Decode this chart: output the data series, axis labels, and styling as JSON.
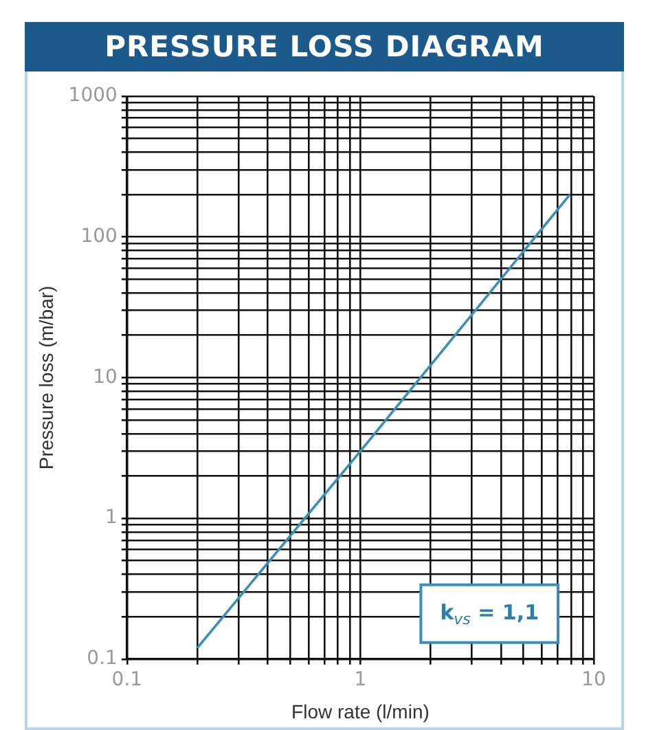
{
  "chart_data": {
    "type": "line",
    "title": "PRESSURE LOSS DIAGRAM",
    "xlabel": "Flow rate (l/min)",
    "ylabel": "Pressure loss (m/bar)",
    "annotations": [
      "k$_{vs}$ = 1,1"
    ],
    "log": "xy",
    "grid": true,
    "legend": false,
    "marker": "none",
    "line_style": "solid",
    "xlim": [
      0.1,
      10
    ],
    "ylim": [
      0.1,
      1000
    ],
    "xticks": [
      0.1,
      {
        "value": 0.2,
        "label": null
      },
      {
        "value": 0.3,
        "label": null
      },
      {
        "value": 0.4,
        "label": null
      },
      {
        "value": 0.5,
        "label": null
      },
      {
        "value": 0.6,
        "label": null
      },
      {
        "value": 0.7,
        "label": null
      },
      {
        "value": 0.8,
        "label": null
      },
      {
        "value": 0.9,
        "label": null
      },
      1,
      {
        "value": 2,
        "label": null
      },
      {
        "value": 3,
        "label": null
      },
      {
        "value": 4,
        "label": null
      },
      {
        "value": 5,
        "label": null
      },
      {
        "value": 6,
        "label": null
      },
      {
        "value": 7,
        "label": null
      },
      {
        "value": 8,
        "label": null
      },
      {
        "value": 9,
        "label": null
      },
      10
    ],
    "yticks": [
      0.1,
      {
        "value": 0.2,
        "label": null
      },
      {
        "value": 0.3,
        "label": null
      },
      {
        "value": 0.4,
        "label": null
      },
      {
        "value": 0.5,
        "label": null
      },
      {
        "value": 0.6,
        "label": null
      },
      {
        "value": 0.7,
        "label": null
      },
      {
        "value": 0.8,
        "label": null
      },
      {
        "value": 0.9,
        "label": null
      },
      1,
      {
        "value": 2,
        "label": null
      },
      {
        "value": 3,
        "label": null
      },
      {
        "value": 4,
        "label": null
      },
      {
        "value": 5,
        "label": null
      },
      {
        "value": 6,
        "label": null
      },
      {
        "value": 7,
        "label": null
      },
      {
        "value": 8,
        "label": null
      },
      {
        "value": 9,
        "label": null
      },
      10,
      {
        "value": 20,
        "label": null
      },
      {
        "value": 30,
        "label": null
      },
      {
        "value": 40,
        "label": null
      },
      {
        "value": 50,
        "label": null
      },
      {
        "value": 60,
        "label": null
      },
      {
        "value": 70,
        "label": null
      },
      {
        "value": 80,
        "label": null
      },
      {
        "value": 90,
        "label": null
      },
      100,
      {
        "value": 200,
        "label": null
      },
      {
        "value": 300,
        "label": null
      },
      {
        "value": 400,
        "label": null
      },
      {
        "value": 500,
        "label": null
      },
      {
        "value": 600,
        "label": null
      },
      {
        "value": 700,
        "label": null
      },
      {
        "value": 800,
        "label": null
      },
      {
        "value": 900,
        "label": null
      },
      1000
    ],
    "series": [
      {
        "color": "#3a8fb7",
        "x": [
          0.2,
          1,
          7.9
        ],
        "values": [
          0.12,
          3,
          200
        ]
      }
    ]
  }
}
